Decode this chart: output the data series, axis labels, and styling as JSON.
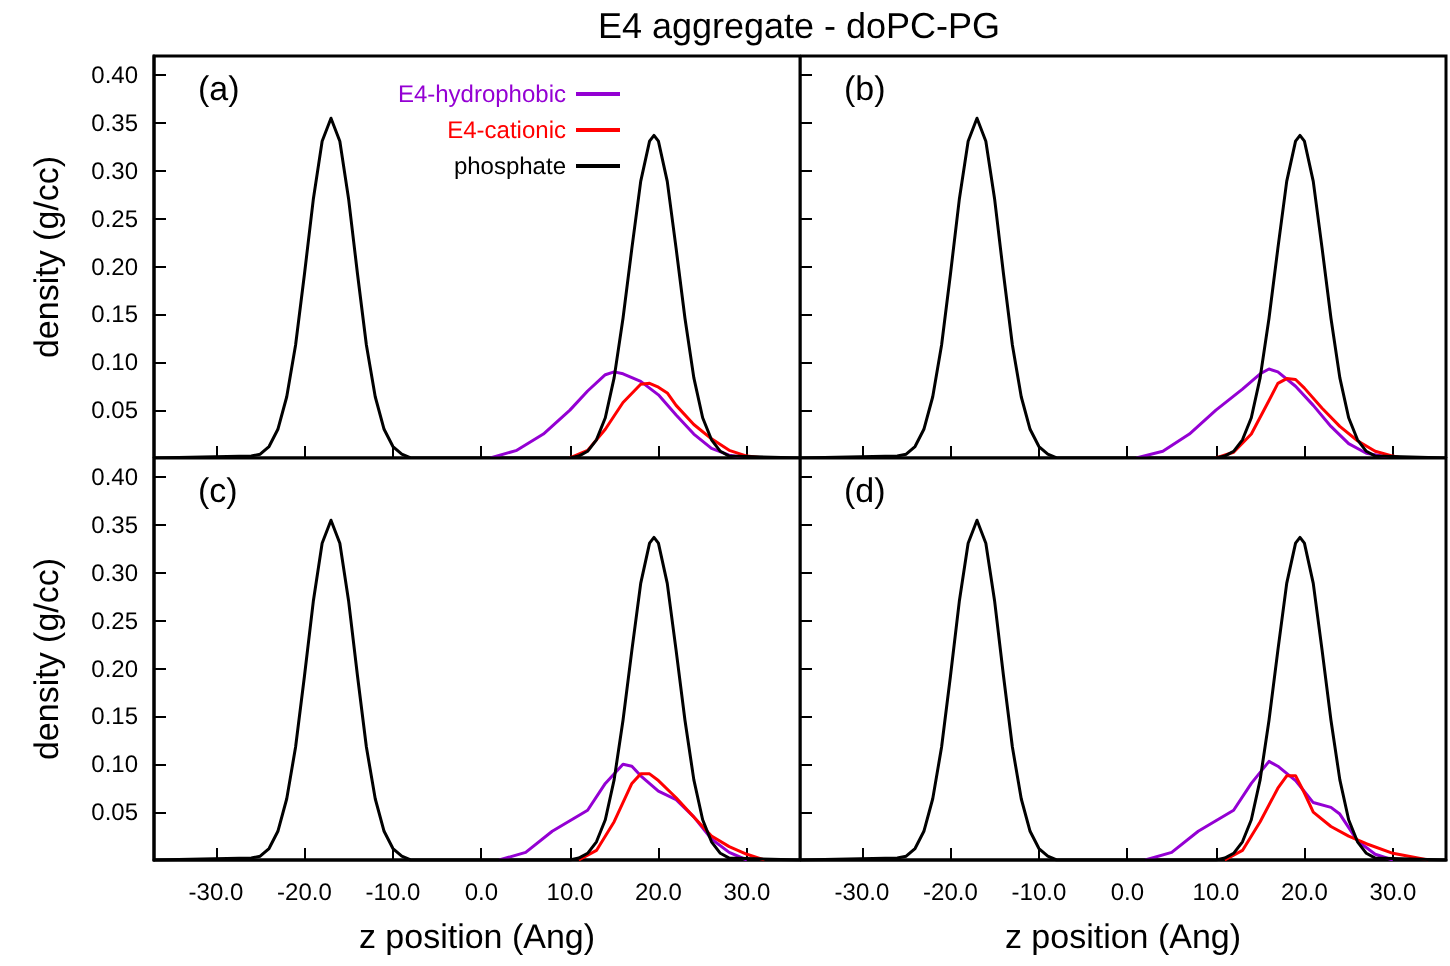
{
  "chart_data": [
    {
      "type": "line",
      "title": "E4 aggregate - doPC-PG",
      "ylabel": "density (g/cc)",
      "annotations": [
        "(a)"
      ],
      "tick_labels": "y",
      "legend": "top",
      "grid": false,
      "xlim": [
        -37,
        36
      ],
      "xticks": [
        -30,
        -20,
        -10,
        0,
        10,
        20,
        30
      ],
      "ylim": [
        0,
        0.42
      ],
      "yticks": [
        0.05,
        {
          "value": 0.1,
          "label": "0.10"
        },
        0.15,
        {
          "value": 0.2,
          "label": "0.20"
        },
        0.25,
        {
          "value": 0.3,
          "label": "0.30"
        },
        0.35,
        {
          "value": 0.4,
          "label": "0.40"
        }
      ],
      "series": [
        {
          "name": "E4-hydrophobic",
          "color": "#9400d3",
          "x": [
            1,
            4,
            7,
            10,
            12,
            14,
            15,
            16,
            18,
            20,
            22,
            24,
            26,
            28,
            30
          ],
          "values": [
            0,
            0.008,
            0.025,
            0.05,
            0.07,
            0.087,
            0.09,
            0.088,
            0.08,
            0.066,
            0.045,
            0.025,
            0.01,
            0.003,
            0
          ]
        },
        {
          "name": "E4-cationic",
          "color": "#ff0000",
          "x": [
            10,
            12,
            14,
            16,
            18,
            19,
            20,
            21,
            22,
            24,
            26,
            28,
            30,
            32
          ],
          "values": [
            0,
            0.008,
            0.03,
            0.058,
            0.077,
            0.078,
            0.074,
            0.068,
            0.055,
            0.035,
            0.02,
            0.008,
            0.002,
            0
          ]
        },
        {
          "name": "phosphate",
          "color": "#000000",
          "x": [
            -37,
            -26,
            -25,
            -24,
            -23,
            -22,
            -21,
            -20,
            -19,
            -18,
            -17,
            -16,
            -15,
            -14,
            -13,
            -12,
            -11,
            -10,
            -9,
            -8,
            10,
            11,
            12,
            13,
            14,
            15,
            16,
            17,
            18,
            19,
            19.5,
            20,
            21,
            22,
            23,
            24,
            25,
            26,
            27,
            28,
            36
          ],
          "values": [
            0,
            0.002,
            0.004,
            0.012,
            0.03,
            0.064,
            0.118,
            0.192,
            0.27,
            0.331,
            0.355,
            0.331,
            0.27,
            0.192,
            0.118,
            0.064,
            0.03,
            0.012,
            0.004,
            0,
            0,
            0.002,
            0.007,
            0.019,
            0.042,
            0.084,
            0.146,
            0.219,
            0.289,
            0.331,
            0.337,
            0.331,
            0.289,
            0.219,
            0.146,
            0.084,
            0.042,
            0.019,
            0.007,
            0.002,
            0
          ]
        }
      ]
    },
    {
      "type": "line",
      "annotations": [
        "(b)"
      ],
      "tick_labels": false,
      "grid": false,
      "xlim": [
        -37,
        36
      ],
      "xticks": [
        -30,
        -20,
        -10,
        0,
        10,
        20,
        30
      ],
      "ylim": [
        0,
        0.42
      ],
      "yticks": [
        0.05,
        0.1,
        0.15,
        0.2,
        0.25,
        0.3,
        0.35,
        0.4
      ],
      "series": [
        {
          "color": "#9400d3",
          "x": [
            1,
            4,
            7,
            10,
            13,
            15,
            16,
            17,
            19,
            21,
            23,
            25,
            27,
            30
          ],
          "values": [
            0,
            0.007,
            0.025,
            0.05,
            0.072,
            0.088,
            0.093,
            0.09,
            0.075,
            0.055,
            0.033,
            0.015,
            0.005,
            0
          ]
        },
        {
          "color": "#ff0000",
          "x": [
            10,
            12,
            14,
            16,
            17,
            18,
            19,
            20,
            22,
            24,
            26,
            28,
            30,
            31
          ],
          "values": [
            0,
            0.006,
            0.025,
            0.06,
            0.078,
            0.083,
            0.082,
            0.073,
            0.052,
            0.033,
            0.018,
            0.007,
            0.002,
            0
          ]
        },
        {
          "color": "#000000",
          "x": [
            -37,
            -26,
            -25,
            -24,
            -23,
            -22,
            -21,
            -20,
            -19,
            -18,
            -17,
            -16,
            -15,
            -14,
            -13,
            -12,
            -11,
            -10,
            -9,
            -8,
            10,
            11,
            12,
            13,
            14,
            15,
            16,
            17,
            18,
            19,
            19.5,
            20,
            21,
            22,
            23,
            24,
            25,
            26,
            27,
            28,
            36
          ],
          "values": [
            0,
            0.002,
            0.004,
            0.012,
            0.03,
            0.064,
            0.118,
            0.192,
            0.27,
            0.331,
            0.355,
            0.331,
            0.27,
            0.192,
            0.118,
            0.064,
            0.03,
            0.012,
            0.004,
            0,
            0,
            0.002,
            0.007,
            0.019,
            0.042,
            0.084,
            0.146,
            0.219,
            0.289,
            0.331,
            0.337,
            0.331,
            0.289,
            0.219,
            0.146,
            0.084,
            0.042,
            0.019,
            0.007,
            0.002,
            0
          ]
        }
      ]
    },
    {
      "type": "line",
      "xlabel": "z position (Ang)",
      "ylabel": "density (g/cc)",
      "annotations": [
        "(c)"
      ],
      "grid": false,
      "xlim": [
        -37,
        36
      ],
      "xticks": [
        {
          "value": -30,
          "label": "-30.0"
        },
        {
          "value": -20,
          "label": "-20.0"
        },
        {
          "value": -10,
          "label": "-10.0"
        },
        {
          "value": 0,
          "label": "0.0"
        },
        {
          "value": 10,
          "label": "10.0"
        },
        {
          "value": 20,
          "label": "20.0"
        },
        {
          "value": 30,
          "label": "30.0"
        }
      ],
      "ylim": [
        0,
        0.42
      ],
      "yticks": [
        0.05,
        {
          "value": 0.1,
          "label": "0.10"
        },
        0.15,
        {
          "value": 0.2,
          "label": "0.20"
        },
        0.25,
        {
          "value": 0.3,
          "label": "0.30"
        },
        0.35,
        {
          "value": 0.4,
          "label": "0.40"
        }
      ],
      "series": [
        {
          "color": "#9400d3",
          "x": [
            2,
            5,
            8,
            12,
            14,
            16,
            17,
            18,
            20,
            22,
            24,
            26,
            28,
            30
          ],
          "values": [
            0,
            0.008,
            0.03,
            0.052,
            0.08,
            0.1,
            0.098,
            0.088,
            0.072,
            0.063,
            0.045,
            0.022,
            0.008,
            0
          ]
        },
        {
          "color": "#ff0000",
          "x": [
            11,
            13,
            15,
            17,
            18,
            19,
            20,
            22,
            24,
            26,
            28,
            30,
            32
          ],
          "values": [
            0,
            0.01,
            0.04,
            0.08,
            0.09,
            0.09,
            0.083,
            0.065,
            0.045,
            0.025,
            0.014,
            0.006,
            0
          ]
        },
        {
          "color": "#000000",
          "x": [
            -37,
            -26,
            -25,
            -24,
            -23,
            -22,
            -21,
            -20,
            -19,
            -18,
            -17,
            -16,
            -15,
            -14,
            -13,
            -12,
            -11,
            -10,
            -9,
            -8,
            10,
            11,
            12,
            13,
            14,
            15,
            16,
            17,
            18,
            19,
            19.5,
            20,
            21,
            22,
            23,
            24,
            25,
            26,
            27,
            28,
            36
          ],
          "values": [
            0,
            0.002,
            0.004,
            0.012,
            0.03,
            0.064,
            0.118,
            0.192,
            0.27,
            0.331,
            0.355,
            0.331,
            0.27,
            0.192,
            0.118,
            0.064,
            0.03,
            0.012,
            0.004,
            0,
            0,
            0.002,
            0.007,
            0.019,
            0.042,
            0.084,
            0.146,
            0.219,
            0.289,
            0.331,
            0.337,
            0.331,
            0.289,
            0.219,
            0.146,
            0.084,
            0.042,
            0.019,
            0.007,
            0.002,
            0
          ]
        }
      ]
    },
    {
      "type": "line",
      "xlabel": "z position (Ang)",
      "annotations": [
        "(d)"
      ],
      "tick_labels": "x",
      "grid": false,
      "xlim": [
        -37,
        36
      ],
      "xticks": [
        {
          "value": -30,
          "label": "-30.0"
        },
        {
          "value": -20,
          "label": "-20.0"
        },
        {
          "value": -10,
          "label": "-10.0"
        },
        {
          "value": 0,
          "label": "0.0"
        },
        {
          "value": 10,
          "label": "10.0"
        },
        {
          "value": 20,
          "label": "20.0"
        },
        {
          "value": 30,
          "label": "30.0"
        }
      ],
      "ylim": [
        0,
        0.42
      ],
      "yticks": [
        0.05,
        0.1,
        0.15,
        0.2,
        0.25,
        0.3,
        0.35,
        0.4
      ],
      "series": [
        {
          "color": "#9400d3",
          "x": [
            2,
            5,
            8,
            12,
            14,
            16,
            17,
            19,
            21,
            23,
            24,
            26,
            28,
            30
          ],
          "values": [
            0,
            0.008,
            0.03,
            0.052,
            0.08,
            0.103,
            0.098,
            0.083,
            0.06,
            0.055,
            0.048,
            0.02,
            0.006,
            0
          ]
        },
        {
          "color": "#ff0000",
          "x": [
            11,
            13,
            15,
            17,
            18,
            19,
            20,
            21,
            23,
            25,
            27,
            30,
            34
          ],
          "values": [
            0,
            0.01,
            0.04,
            0.075,
            0.088,
            0.088,
            0.07,
            0.05,
            0.035,
            0.025,
            0.017,
            0.007,
            0
          ]
        },
        {
          "color": "#000000",
          "x": [
            -37,
            -26,
            -25,
            -24,
            -23,
            -22,
            -21,
            -20,
            -19,
            -18,
            -17,
            -16,
            -15,
            -14,
            -13,
            -12,
            -11,
            -10,
            -9,
            -8,
            10,
            11,
            12,
            13,
            14,
            15,
            16,
            17,
            18,
            19,
            19.5,
            20,
            21,
            22,
            23,
            24,
            25,
            26,
            27,
            28,
            36
          ],
          "values": [
            0,
            0.002,
            0.004,
            0.012,
            0.03,
            0.064,
            0.118,
            0.192,
            0.27,
            0.331,
            0.355,
            0.331,
            0.27,
            0.192,
            0.118,
            0.064,
            0.03,
            0.012,
            0.004,
            0,
            0,
            0.002,
            0.007,
            0.019,
            0.042,
            0.084,
            0.146,
            0.219,
            0.289,
            0.331,
            0.337,
            0.331,
            0.289,
            0.219,
            0.146,
            0.084,
            0.042,
            0.019,
            0.007,
            0.002,
            0
          ]
        }
      ]
    }
  ]
}
